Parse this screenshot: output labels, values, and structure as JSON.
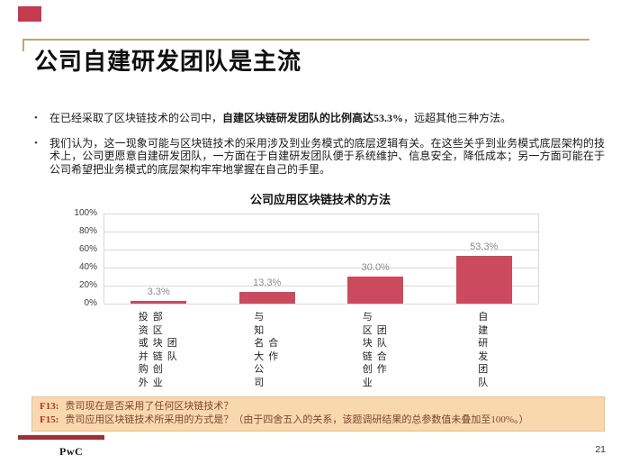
{
  "slide": {
    "title": "公司自建研发团队是主流",
    "bullet_marker": "•",
    "logo_text": "PwC",
    "page_number": "21"
  },
  "bullets": [
    {
      "pre": "在已经采取了区块链技术的公司中，",
      "bold": "自建区块链研发团队的比例高达53.3%",
      "post": "，远超其他三种方法。"
    },
    {
      "text": "我们认为，这一现象可能与区块链技术的采用涉及到业务模式的底层逻辑有关。在这些关乎到业务模式底层架构的技术上，公司更愿意自建研发团队，一方面在于自建研发团队便于系统维护、信息安全，降低成本；另一方面可能在于公司希望把业务模式的底层架构牢牢地掌握在自己的手里。"
    }
  ],
  "chart_data": {
    "type": "bar",
    "title": "公司应用区块链技术的方法",
    "categories": [
      "投资或并购外部区块链创业团队",
      "与知名大公司合作",
      "与区块链创业团队合作",
      "自建研发团队"
    ],
    "category_columns": [
      [
        "投资或并购外",
        "部区块链创业",
        "团队"
      ],
      [
        "与知名大公司",
        "合作"
      ],
      [
        "与区块链创业",
        "团队合作"
      ],
      [
        "自建研发团队"
      ]
    ],
    "values": [
      3.3,
      13.3,
      30.0,
      53.3
    ],
    "value_labels": [
      "3.3%",
      "13.3%",
      "30.0%",
      "53.3%"
    ],
    "y_ticks": [
      "100%",
      "80%",
      "60%",
      "40%",
      "20%",
      "0%"
    ],
    "ylim": [
      0,
      100
    ],
    "grid": "horizontal",
    "legend": "none",
    "bar_color": "#cb4a5e",
    "value_label_color": "#8c8c8c"
  },
  "footnote": {
    "lines": [
      {
        "label": "F13:",
        "text": "贵司现在是否采用了任何区块链技术？"
      },
      {
        "label": "F15:",
        "text": "贵司应用区块链技术所采用的方式是？（由于四舍五入的关系，该题调研结果的总参数值未叠加至100%。）"
      }
    ]
  },
  "colors": {
    "accent_square": "#c43a4e",
    "title_rule": "#b9a87e",
    "bar": "#cb4a5e",
    "footnote_bg": "#fad8ae",
    "footnote_label": "#ae3524",
    "footnote_text": "#7e4430",
    "footer_bar": "#9e2f33"
  }
}
